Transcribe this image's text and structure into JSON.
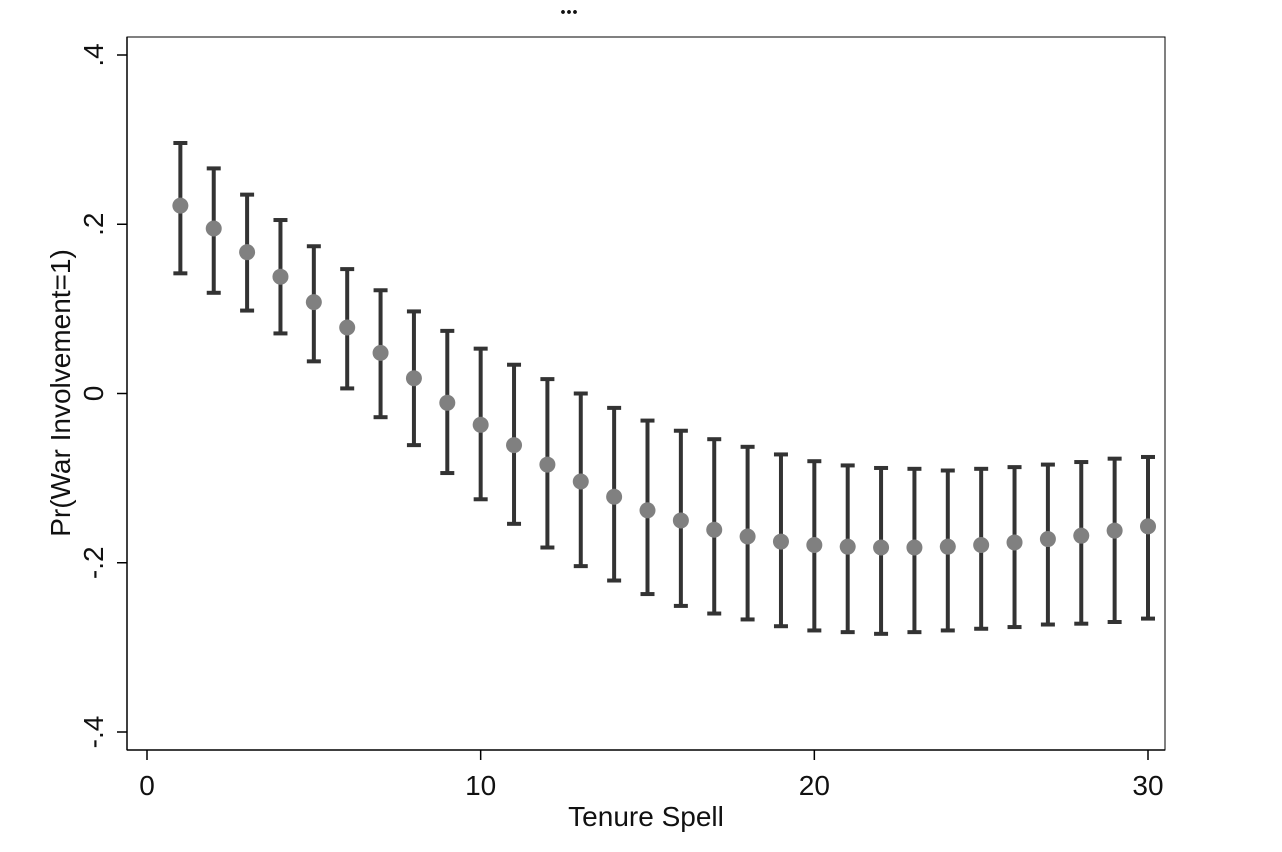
{
  "caption_fragment": "...",
  "chart_data": {
    "type": "scatter",
    "title": "",
    "xlabel": "Tenure Spell",
    "ylabel": "Pr(War Involvement=1)",
    "xlim": [
      0,
      30
    ],
    "ylim": [
      -0.4,
      0.4
    ],
    "x_ticks": [
      0,
      10,
      20,
      30
    ],
    "x_tick_labels": [
      "0",
      "10",
      "20",
      "30"
    ],
    "y_ticks": [
      -0.4,
      -0.2,
      0,
      0.2,
      0.4
    ],
    "y_tick_labels": [
      "-.4",
      "-.2",
      "0",
      ".2",
      ".4"
    ],
    "grid": false,
    "legend": "none",
    "point_color": "#808080",
    "errorbar_color": "#333333",
    "series": [
      {
        "x": [
          1,
          2,
          3,
          4,
          5,
          6,
          7,
          8,
          9,
          10,
          11,
          12,
          13,
          14,
          15,
          16,
          17,
          18,
          19,
          20,
          21,
          22,
          23,
          24,
          25,
          26,
          27,
          28,
          29,
          30
        ],
        "y": [
          0.222,
          0.195,
          0.167,
          0.138,
          0.108,
          0.078,
          0.048,
          0.018,
          -0.011,
          -0.037,
          -0.061,
          -0.084,
          -0.104,
          -0.122,
          -0.138,
          -0.15,
          -0.161,
          -0.169,
          -0.175,
          -0.179,
          -0.181,
          -0.182,
          -0.182,
          -0.181,
          -0.179,
          -0.176,
          -0.172,
          -0.168,
          -0.162,
          -0.157
        ],
        "upper": [
          0.296,
          0.266,
          0.235,
          0.205,
          0.174,
          0.147,
          0.122,
          0.097,
          0.074,
          0.053,
          0.034,
          0.017,
          0.0,
          -0.017,
          -0.032,
          -0.044,
          -0.054,
          -0.063,
          -0.072,
          -0.08,
          -0.085,
          -0.088,
          -0.089,
          -0.091,
          -0.089,
          -0.087,
          -0.084,
          -0.081,
          -0.077,
          -0.075
        ],
        "lower": [
          0.142,
          0.119,
          0.098,
          0.071,
          0.038,
          0.006,
          -0.028,
          -0.061,
          -0.094,
          -0.125,
          -0.154,
          -0.182,
          -0.204,
          -0.221,
          -0.237,
          -0.251,
          -0.26,
          -0.267,
          -0.275,
          -0.28,
          -0.282,
          -0.284,
          -0.282,
          -0.28,
          -0.278,
          -0.276,
          -0.273,
          -0.272,
          -0.27,
          -0.266
        ]
      }
    ]
  }
}
